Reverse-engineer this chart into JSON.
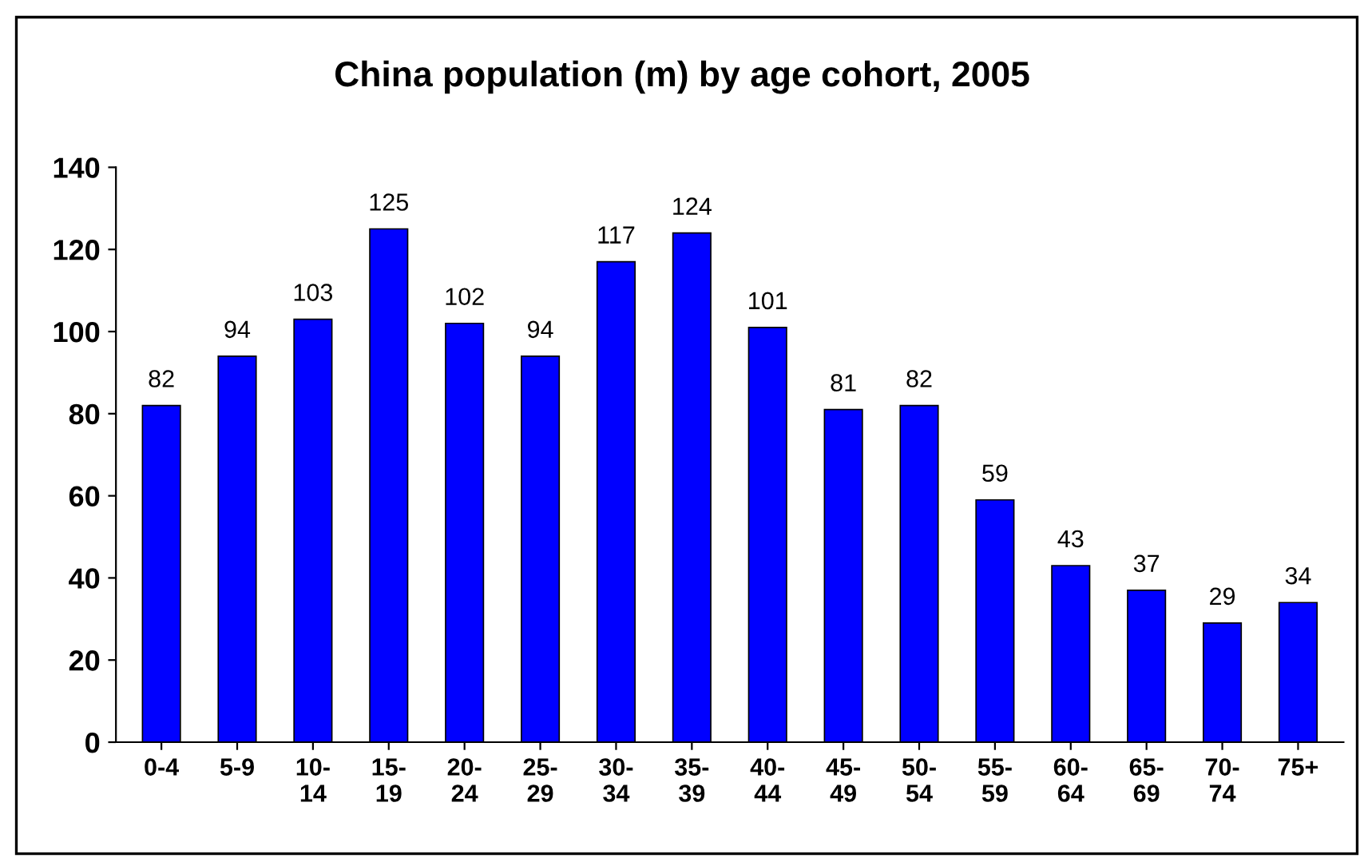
{
  "chart_data": {
    "type": "bar",
    "title": "China population (m) by age cohort, 2005",
    "categories": [
      "0-4",
      "5-9",
      "10-\n14",
      "15-\n19",
      "20-\n24",
      "25-\n29",
      "30-\n34",
      "35-\n39",
      "40-\n44",
      "45-\n49",
      "50-\n54",
      "55-\n59",
      "60-\n64",
      "65-\n69",
      "70-\n74",
      "75+"
    ],
    "values": [
      82,
      94,
      103,
      125,
      102,
      94,
      117,
      124,
      101,
      81,
      82,
      59,
      43,
      37,
      29,
      34
    ],
    "color": "#0000ff",
    "ylim": [
      0,
      140
    ],
    "yticks": [
      0,
      20,
      40,
      60,
      80,
      100,
      120,
      140
    ],
    "data_labels": true,
    "grid": false,
    "legend": false
  }
}
